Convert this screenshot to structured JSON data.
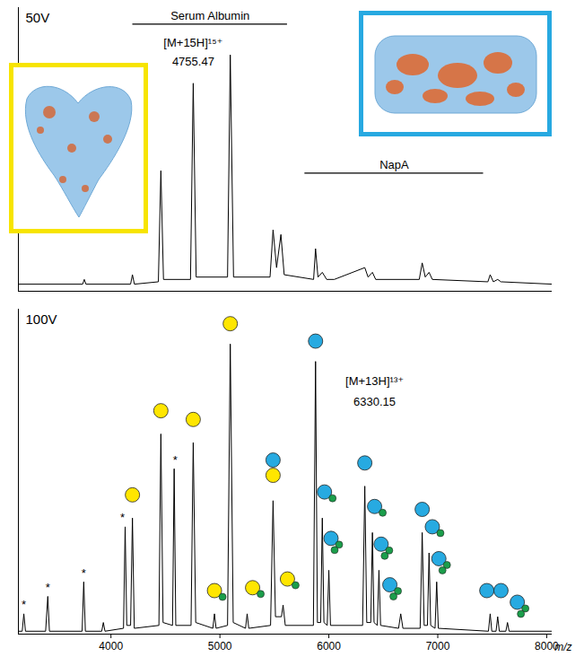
{
  "chart_data": [
    {
      "type": "line",
      "title": "50V",
      "tick_labels": false,
      "xlim": [
        3150,
        8050
      ],
      "ylim": [
        0,
        120
      ],
      "series": [
        {
          "color": "#000000",
          "x": [
            3150,
            3740,
            3755,
            3770,
            4180,
            4197,
            4215,
            4435,
            4458,
            4482,
            4730,
            4755,
            4782,
            5070,
            5095,
            5125,
            5460,
            5488,
            5520,
            5560,
            5590,
            5860,
            5878,
            5900,
            5940,
            5980,
            6050,
            6330,
            6360,
            6400,
            6430,
            6830,
            6857,
            6885,
            6920,
            6950,
            7460,
            7481,
            7510,
            7550,
            7580,
            8050
          ],
          "values": [
            3,
            3,
            5,
            3,
            3,
            7,
            3,
            4,
            51,
            5,
            5,
            88,
            6,
            6,
            100,
            6,
            6,
            26,
            10,
            24,
            7,
            5,
            18,
            6,
            8,
            5,
            5,
            10,
            6,
            8,
            5,
            5,
            12,
            6,
            8,
            5,
            4,
            7,
            4,
            5,
            4,
            3
          ]
        }
      ],
      "ranges": [
        {
          "label": "Serum Albumin",
          "x1": 4200,
          "x2": 5620,
          "y": 113
        },
        {
          "label": "NapA",
          "x1": 5780,
          "x2": 7420,
          "y": 50
        }
      ],
      "annotations": [
        {
          "x": 4755,
          "y": 105,
          "text": "[M+15H]¹⁵⁺"
        },
        {
          "x": 4755,
          "y": 97,
          "text": "4755.47"
        }
      ]
    },
    {
      "type": "line",
      "title": "100V",
      "tick_labels": "x",
      "xlabel": "m/z",
      "xlim": [
        3150,
        8050
      ],
      "ylim": [
        0,
        112
      ],
      "xticks": [
        4000,
        5000,
        6000,
        7000,
        8000
      ],
      "series": [
        {
          "color": "#000000",
          "x": [
            3150,
            3185,
            3200,
            3215,
            3400,
            3420,
            3435,
            3735,
            3750,
            3765,
            3915,
            3930,
            3945,
            4115,
            4130,
            4145,
            4180,
            4197,
            4214,
            4440,
            4458,
            4478,
            4565,
            4580,
            4595,
            4735,
            4755,
            4778,
            4935,
            4950,
            4965,
            5070,
            5095,
            5122,
            5235,
            5250,
            5265,
            5465,
            5488,
            5510,
            5565,
            5580,
            5600,
            5858,
            5878,
            5895,
            5925,
            5940,
            5955,
            5985,
            6000,
            6015,
            6310,
            6330,
            6348,
            6385,
            6400,
            6415,
            6445,
            6460,
            6475,
            6640,
            6660,
            6680,
            6838,
            6857,
            6875,
            6905,
            6920,
            6935,
            6975,
            6990,
            7005,
            7465,
            7481,
            7496,
            7535,
            7550,
            7565,
            7625,
            7640,
            7655,
            8050
          ],
          "values": [
            1,
            1,
            7,
            1,
            1,
            13,
            1,
            1,
            18,
            1,
            1,
            4,
            1,
            2,
            37,
            3,
            3,
            40,
            2,
            3,
            69,
            4,
            3,
            57,
            3,
            3,
            66,
            4,
            2,
            7,
            2,
            3,
            100,
            4,
            2,
            7,
            2,
            3,
            46,
            6,
            6,
            10,
            3,
            3,
            94,
            4,
            4,
            40,
            4,
            3,
            22,
            3,
            3,
            51,
            4,
            4,
            35,
            4,
            3,
            22,
            3,
            2,
            7,
            2,
            2,
            35,
            3,
            3,
            28,
            3,
            2,
            18,
            2,
            1,
            7,
            1,
            1,
            6,
            1,
            1,
            4,
            1,
            1
          ]
        }
      ],
      "adduct_color": "#1b9e4b",
      "symbols": [
        {
          "x": 4197,
          "y": 48,
          "colors": [
            "#ffe600"
          ],
          "adducts": 0
        },
        {
          "x": 4458,
          "y": 77,
          "colors": [
            "#ffe600"
          ],
          "adducts": 0
        },
        {
          "x": 4755,
          "y": 74,
          "colors": [
            "#ffe600"
          ],
          "adducts": 0
        },
        {
          "x": 5095,
          "y": 107,
          "colors": [
            "#ffe600"
          ],
          "adducts": 0
        },
        {
          "x": 4950,
          "y": 15,
          "colors": [
            "#ffe600"
          ],
          "adducts": 1
        },
        {
          "x": 5300,
          "y": 16,
          "colors": [
            "#ffe600"
          ],
          "adducts": 1
        },
        {
          "x": 5620,
          "y": 19,
          "colors": [
            "#ffe600"
          ],
          "adducts": 1
        },
        {
          "x": 5488,
          "y": 60,
          "colors": [
            "#27aae1",
            "#ffe600"
          ],
          "adducts": 0
        },
        {
          "x": 5878,
          "y": 101,
          "colors": [
            "#27aae1"
          ],
          "adducts": 0
        },
        {
          "x": 5960,
          "y": 49,
          "colors": [
            "#27aae1"
          ],
          "adducts": 1
        },
        {
          "x": 6020,
          "y": 33,
          "colors": [
            "#27aae1"
          ],
          "adducts": 2
        },
        {
          "x": 6330,
          "y": 59,
          "colors": [
            "#27aae1"
          ],
          "adducts": 0
        },
        {
          "x": 6420,
          "y": 44,
          "colors": [
            "#27aae1"
          ],
          "adducts": 1
        },
        {
          "x": 6480,
          "y": 31,
          "colors": [
            "#27aae1"
          ],
          "adducts": 2
        },
        {
          "x": 6560,
          "y": 17,
          "colors": [
            "#27aae1"
          ],
          "adducts": 2
        },
        {
          "x": 6857,
          "y": 43,
          "colors": [
            "#27aae1"
          ],
          "adducts": 0
        },
        {
          "x": 6950,
          "y": 37,
          "colors": [
            "#27aae1"
          ],
          "adducts": 1
        },
        {
          "x": 7010,
          "y": 26,
          "colors": [
            "#27aae1"
          ],
          "adducts": 2
        },
        {
          "x": 7450,
          "y": 15,
          "colors": [
            "#27aae1"
          ],
          "adducts": 0
        },
        {
          "x": 7580,
          "y": 15,
          "colors": [
            "#27aae1"
          ],
          "adducts": 0
        },
        {
          "x": 7730,
          "y": 11,
          "colors": [
            "#27aae1"
          ],
          "adducts": 2
        }
      ],
      "annotations": [
        {
          "x": 3200,
          "y": 10,
          "text": "*"
        },
        {
          "x": 3420,
          "y": 16,
          "text": "*"
        },
        {
          "x": 3750,
          "y": 21,
          "text": "*"
        },
        {
          "x": 4105,
          "y": 40,
          "text": "*"
        },
        {
          "x": 4590,
          "y": 60,
          "text": "*"
        },
        {
          "x": 6420,
          "y": 87,
          "text": "[M+13H]¹³⁺"
        },
        {
          "x": 6420,
          "y": 80,
          "text": "6330.15"
        }
      ]
    }
  ]
}
